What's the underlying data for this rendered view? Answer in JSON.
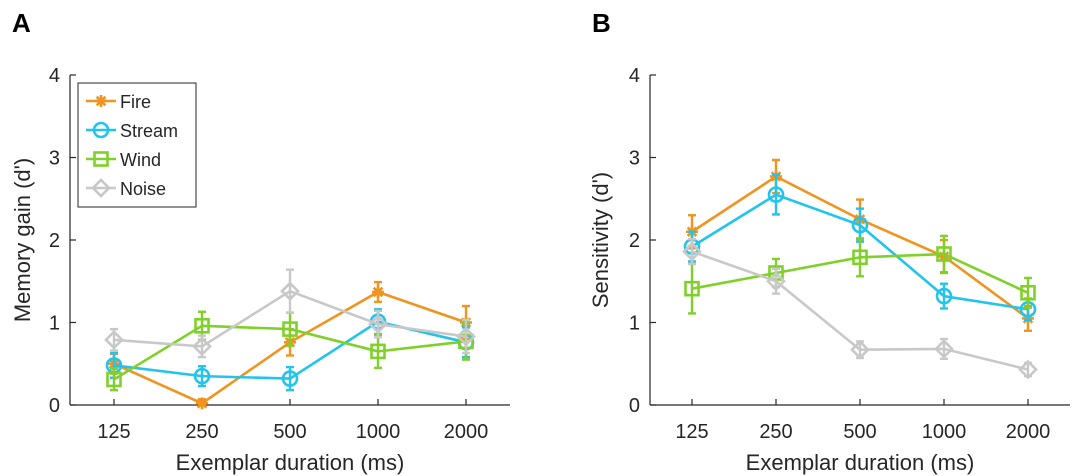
{
  "panels": [
    {
      "letter": "A",
      "chart_data": {
        "type": "line",
        "x": [
          125,
          250,
          500,
          1000,
          2000
        ],
        "xticklabels": [
          "125",
          "250",
          "500",
          "1000",
          "2000"
        ],
        "xlabel": "Exemplar duration (ms)",
        "ylabel": "Memory gain (d')",
        "ylim": [
          0,
          4
        ],
        "yticks": [
          0,
          1,
          2,
          3,
          4
        ],
        "legend": "top-left",
        "series": [
          {
            "name": "Fire",
            "color": "#f0941f",
            "marker": "star",
            "values": [
              0.5,
              0.02,
              0.76,
              1.37,
              1.0
            ],
            "errors": [
              0.12,
              0.05,
              0.16,
              0.12,
              0.2
            ]
          },
          {
            "name": "Stream",
            "color": "#22c3ec",
            "marker": "circle",
            "values": [
              0.48,
              0.35,
              0.32,
              1.01,
              0.76
            ],
            "errors": [
              0.15,
              0.12,
              0.14,
              0.15,
              0.18
            ]
          },
          {
            "name": "Wind",
            "color": "#7fd12a",
            "marker": "square",
            "values": [
              0.31,
              0.96,
              0.92,
              0.65,
              0.77
            ],
            "errors": [
              0.13,
              0.17,
              0.2,
              0.2,
              0.22
            ]
          },
          {
            "name": "Noise",
            "color": "#c8c8c8",
            "marker": "diamond",
            "values": [
              0.79,
              0.71,
              1.38,
              0.98,
              0.83
            ],
            "errors": [
              0.13,
              0.13,
              0.26,
              0.16,
              0.2
            ]
          }
        ]
      }
    },
    {
      "letter": "B",
      "chart_data": {
        "type": "line",
        "x": [
          125,
          250,
          500,
          1000,
          2000
        ],
        "xticklabels": [
          "125",
          "250",
          "500",
          "1000",
          "2000"
        ],
        "xlabel": "Exemplar duration (ms)",
        "ylabel": "Sensitivity (d')",
        "ylim": [
          0,
          4
        ],
        "yticks": [
          0,
          1,
          2,
          3,
          4
        ],
        "series": [
          {
            "name": "Fire",
            "color": "#f0941f",
            "marker": "star",
            "values": [
              2.1,
              2.77,
              2.25,
              1.8,
              1.05
            ],
            "errors": [
              0.2,
              0.2,
              0.24,
              0.2,
              0.15
            ]
          },
          {
            "name": "Stream",
            "color": "#22c3ec",
            "marker": "circle",
            "values": [
              1.92,
              2.55,
              2.18,
              1.32,
              1.16
            ],
            "errors": [
              0.18,
              0.24,
              0.2,
              0.15,
              0.13
            ]
          },
          {
            "name": "Wind",
            "color": "#7fd12a",
            "marker": "square",
            "values": [
              1.41,
              1.6,
              1.79,
              1.83,
              1.36
            ],
            "errors": [
              0.3,
              0.17,
              0.23,
              0.22,
              0.18
            ]
          },
          {
            "name": "Noise",
            "color": "#c8c8c8",
            "marker": "diamond",
            "values": [
              1.86,
              1.5,
              0.67,
              0.68,
              0.43
            ],
            "errors": [
              0.15,
              0.15,
              0.1,
              0.12,
              0.08
            ]
          }
        ]
      }
    }
  ]
}
